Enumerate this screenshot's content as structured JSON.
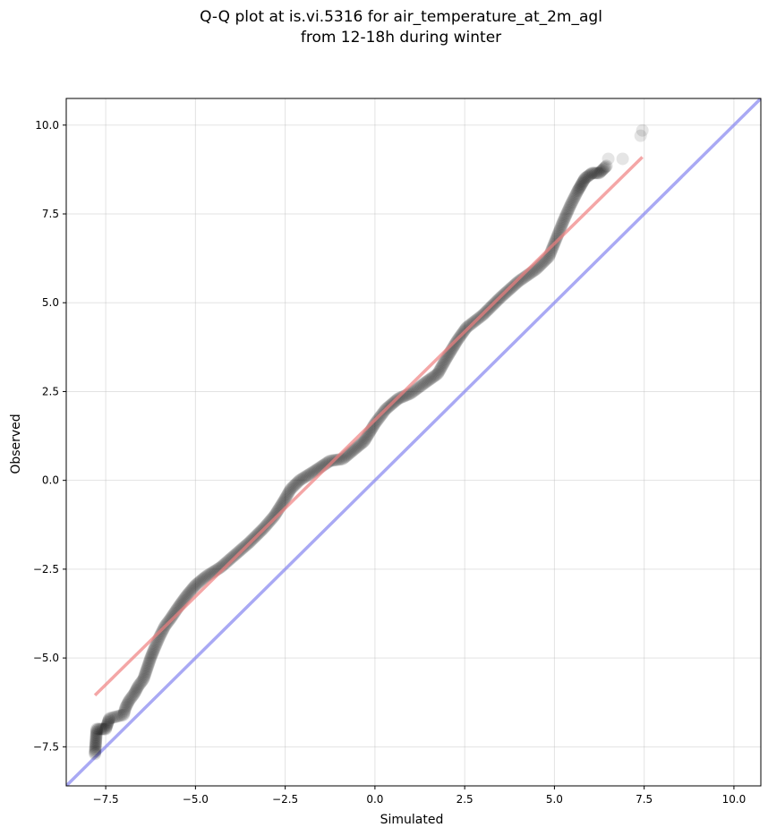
{
  "chart_data": {
    "type": "scatter",
    "title": "Q-Q plot at is.vi.5316 for air_temperature_at_2m_agl",
    "subtitle": "from 12-18h during winter",
    "xlabel": "Simulated",
    "ylabel": "Observed",
    "xlim": [
      -8.6,
      10.75
    ],
    "ylim": [
      -8.6,
      10.75
    ],
    "grid": true,
    "x_ticks": [
      -7.5,
      -5.0,
      -2.5,
      0.0,
      2.5,
      5.0,
      7.5,
      10.0
    ],
    "x_tick_labels": [
      "−7.5",
      "−5.0",
      "−2.5",
      "0.0",
      "2.5",
      "5.0",
      "7.5",
      "10.0"
    ],
    "y_ticks": [
      -7.5,
      -5.0,
      -2.5,
      0.0,
      2.5,
      5.0,
      7.5,
      10.0
    ],
    "y_tick_labels": [
      "−7.5",
      "−5.0",
      "−2.5",
      "0.0",
      "2.5",
      "5.0",
      "7.5",
      "10.0"
    ],
    "colors": {
      "points": "#000000",
      "fit_line": "#f08080",
      "identity_line": "#8c8cf0"
    },
    "fit_line": {
      "x": [
        -7.8,
        7.45
      ],
      "y": [
        -6.05,
        9.1
      ]
    },
    "identity_line": {
      "x": [
        -8.6,
        10.75
      ],
      "y": [
        -8.6,
        10.75
      ]
    },
    "quantile_curve": [
      [
        -7.8,
        -7.7
      ],
      [
        -7.75,
        -7.0
      ],
      [
        -7.5,
        -7.0
      ],
      [
        -7.4,
        -6.7
      ],
      [
        -7.0,
        -6.6
      ],
      [
        -6.95,
        -6.4
      ],
      [
        -6.85,
        -6.2
      ],
      [
        -6.7,
        -6.0
      ],
      [
        -6.6,
        -5.8
      ],
      [
        -6.45,
        -5.6
      ],
      [
        -6.35,
        -5.3
      ],
      [
        -6.25,
        -5.0
      ],
      [
        -6.15,
        -4.75
      ],
      [
        -6.0,
        -4.4
      ],
      [
        -5.85,
        -4.1
      ],
      [
        -5.7,
        -3.9
      ],
      [
        -5.5,
        -3.6
      ],
      [
        -5.25,
        -3.25
      ],
      [
        -5.0,
        -2.95
      ],
      [
        -4.7,
        -2.7
      ],
      [
        -4.3,
        -2.45
      ],
      [
        -3.9,
        -2.1
      ],
      [
        -3.5,
        -1.75
      ],
      [
        -3.1,
        -1.35
      ],
      [
        -2.8,
        -1.0
      ],
      [
        -2.55,
        -0.6
      ],
      [
        -2.35,
        -0.25
      ],
      [
        -2.1,
        0.0
      ],
      [
        -1.7,
        0.25
      ],
      [
        -1.25,
        0.55
      ],
      [
        -0.9,
        0.6
      ],
      [
        -0.6,
        0.85
      ],
      [
        -0.3,
        1.1
      ],
      [
        0.0,
        1.6
      ],
      [
        0.3,
        2.0
      ],
      [
        0.65,
        2.3
      ],
      [
        1.0,
        2.45
      ],
      [
        1.4,
        2.75
      ],
      [
        1.75,
        3.0
      ],
      [
        2.0,
        3.45
      ],
      [
        2.3,
        3.95
      ],
      [
        2.55,
        4.3
      ],
      [
        3.0,
        4.65
      ],
      [
        3.5,
        5.15
      ],
      [
        4.0,
        5.6
      ],
      [
        4.5,
        5.95
      ],
      [
        4.85,
        6.3
      ],
      [
        5.05,
        6.8
      ],
      [
        5.25,
        7.3
      ],
      [
        5.45,
        7.75
      ],
      [
        5.65,
        8.15
      ],
      [
        5.85,
        8.5
      ],
      [
        6.05,
        8.65
      ],
      [
        6.25,
        8.65
      ],
      [
        6.45,
        8.85
      ]
    ],
    "outlier_points": [
      [
        6.5,
        9.05
      ],
      [
        6.9,
        9.05
      ],
      [
        7.4,
        9.7
      ],
      [
        7.45,
        9.85
      ]
    ]
  }
}
